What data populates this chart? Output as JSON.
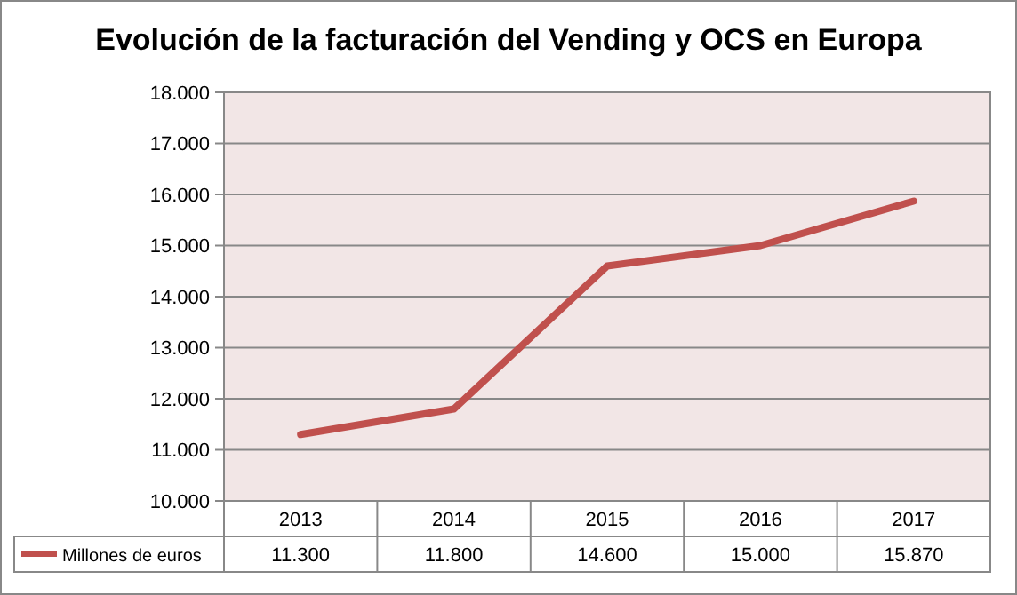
{
  "chart_data": {
    "type": "line",
    "title": "Evolución de la facturación del Vending y OCS en Europa",
    "categories": [
      "2013",
      "2014",
      "2015",
      "2016",
      "2017"
    ],
    "series": [
      {
        "name": "Millones de euros",
        "color": "#c0504d",
        "values": [
          11300,
          11800,
          14600,
          15000,
          15870
        ],
        "value_labels": [
          "11.300",
          "11.800",
          "14.600",
          "15.000",
          "15.870"
        ]
      }
    ],
    "ylim": [
      10000,
      18000
    ],
    "yticks": [
      {
        "value": 10000,
        "label": "10.000"
      },
      {
        "value": 11000,
        "label": "11.000"
      },
      {
        "value": 12000,
        "label": "12.000"
      },
      {
        "value": 13000,
        "label": "13.000"
      },
      {
        "value": 14000,
        "label": "14.000"
      },
      {
        "value": 15000,
        "label": "15.000"
      },
      {
        "value": 16000,
        "label": "16.000"
      },
      {
        "value": 17000,
        "label": "17.000"
      },
      {
        "value": 18000,
        "label": "18.000"
      }
    ],
    "grid": "y",
    "legend": "bottom",
    "marker": "none",
    "line_style": "solid"
  }
}
